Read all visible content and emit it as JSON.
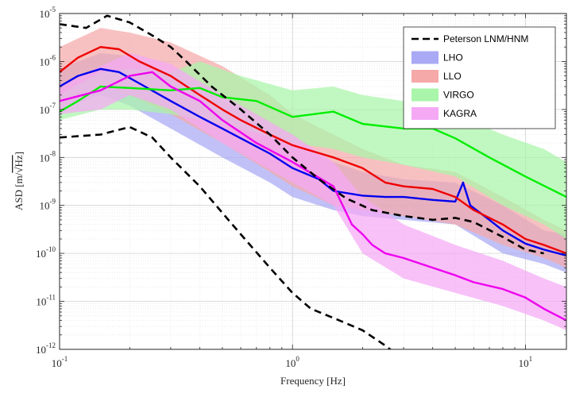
{
  "chart_data": {
    "type": "line",
    "xlabel": "Frequency [Hz]",
    "ylabel_prefix": "ASD [m/",
    "ylabel_root": "√Hz",
    "ylabel_suffix": "]",
    "x_scale": "log",
    "y_scale": "log",
    "xlim": [
      0.1,
      15
    ],
    "ylim": [
      1e-12,
      1e-05
    ],
    "grid": true,
    "legend_position": "top-right",
    "x_ticks": [
      {
        "value": 0.1,
        "base": "10",
        "exp": "-1"
      },
      {
        "value": 1,
        "base": "10",
        "exp": "0"
      },
      {
        "value": 10,
        "base": "10",
        "exp": "1"
      }
    ],
    "y_ticks": [
      {
        "value": 1e-12,
        "base": "10",
        "exp": "-12"
      },
      {
        "value": 1e-11,
        "base": "10",
        "exp": "-11"
      },
      {
        "value": 1e-10,
        "base": "10",
        "exp": "-10"
      },
      {
        "value": 1e-09,
        "base": "10",
        "exp": "-9"
      },
      {
        "value": 1e-08,
        "base": "10",
        "exp": "-8"
      },
      {
        "value": 1e-07,
        "base": "10",
        "exp": "-7"
      },
      {
        "value": 1e-06,
        "base": "10",
        "exp": "-6"
      },
      {
        "value": 1e-05,
        "base": "10",
        "exp": "-5"
      }
    ],
    "legend": [
      {
        "label": "Peterson LNM/HNM",
        "kind": "dashed",
        "color": "#000000"
      },
      {
        "label": "LHO",
        "kind": "patch",
        "color": "#a9a9f5"
      },
      {
        "label": "LLO",
        "kind": "patch",
        "color": "#f5a9a9"
      },
      {
        "label": "VIRGO",
        "kind": "patch",
        "color": "#a9f5a9"
      },
      {
        "label": "KAGRA",
        "kind": "patch",
        "color": "#f5a9f5"
      }
    ],
    "reference_lines": [
      {
        "name": "Peterson HNM",
        "color": "#000000",
        "dashed": true,
        "points": [
          [
            0.1,
            6e-06
          ],
          [
            0.13,
            5e-06
          ],
          [
            0.16,
            9e-06
          ],
          [
            0.2,
            6.5e-06
          ],
          [
            0.25,
            3.5e-06
          ],
          [
            0.3,
            2e-06
          ],
          [
            0.35,
            1e-06
          ],
          [
            0.45,
            3e-07
          ],
          [
            0.6,
            1e-07
          ],
          [
            0.8,
            3e-08
          ],
          [
            1,
            1e-08
          ],
          [
            1.3,
            3.5e-09
          ],
          [
            1.7,
            1.4e-09
          ],
          [
            2.2,
            8e-10
          ],
          [
            3,
            6e-10
          ],
          [
            4,
            5e-10
          ],
          [
            5,
            5.5e-10
          ],
          [
            6,
            4.5e-10
          ],
          [
            8,
            2.2e-10
          ],
          [
            10,
            1.2e-10
          ],
          [
            12,
            1e-10
          ]
        ]
      },
      {
        "name": "Peterson LNM",
        "color": "#000000",
        "dashed": true,
        "points": [
          [
            0.1,
            2.6e-08
          ],
          [
            0.15,
            3e-08
          ],
          [
            0.2,
            4.3e-08
          ],
          [
            0.25,
            2.6e-08
          ],
          [
            0.3,
            1e-08
          ],
          [
            0.4,
            2.5e-09
          ],
          [
            0.5,
            7e-10
          ],
          [
            0.6,
            2.5e-10
          ],
          [
            0.8,
            5e-11
          ],
          [
            1,
            1.5e-11
          ],
          [
            1.2,
            7e-12
          ],
          [
            1.5,
            4.5e-12
          ],
          [
            2,
            2.5e-12
          ],
          [
            2.5,
            1.2e-12
          ],
          [
            2.7,
            9e-13
          ]
        ]
      }
    ],
    "series": [
      {
        "name": "LHO",
        "color": "#0000ee",
        "band_color": "#a9a9f5",
        "points": [
          [
            0.1,
            3e-07
          ],
          [
            0.12,
            5e-07
          ],
          [
            0.15,
            7e-07
          ],
          [
            0.18,
            6e-07
          ],
          [
            0.22,
            3.5e-07
          ],
          [
            0.3,
            1.5e-07
          ],
          [
            0.4,
            7e-08
          ],
          [
            0.5,
            4e-08
          ],
          [
            0.6,
            2.5e-08
          ],
          [
            0.8,
            1.2e-08
          ],
          [
            1,
            6e-09
          ],
          [
            1.3,
            3.5e-09
          ],
          [
            1.5,
            2e-09
          ],
          [
            2,
            1.6e-09
          ],
          [
            2.5,
            1.5e-09
          ],
          [
            3,
            1.5e-09
          ],
          [
            4,
            1.3e-09
          ],
          [
            5,
            1.2e-09
          ],
          [
            5.4,
            3e-09
          ],
          [
            5.8,
            1e-09
          ],
          [
            7,
            5e-10
          ],
          [
            8,
            3e-10
          ],
          [
            10,
            1.6e-10
          ],
          [
            12,
            1.2e-10
          ],
          [
            15,
            9e-11
          ]
        ],
        "upper": [
          [
            0.1,
            7e-07
          ],
          [
            0.15,
            1.5e-06
          ],
          [
            0.2,
            1.3e-06
          ],
          [
            0.3,
            5e-07
          ],
          [
            0.5,
            1.5e-07
          ],
          [
            0.8,
            4e-08
          ],
          [
            1,
            2e-08
          ],
          [
            1.5,
            8e-09
          ],
          [
            2,
            5e-09
          ],
          [
            3,
            3.5e-09
          ],
          [
            5,
            3e-09
          ],
          [
            8,
            1e-09
          ],
          [
            12,
            3e-10
          ],
          [
            15,
            2.5e-10
          ]
        ],
        "lower": [
          [
            0.1,
            1e-07
          ],
          [
            0.15,
            2e-07
          ],
          [
            0.2,
            1.2e-07
          ],
          [
            0.3,
            4e-08
          ],
          [
            0.5,
            1e-08
          ],
          [
            0.8,
            3e-09
          ],
          [
            1,
            1.5e-09
          ],
          [
            1.5,
            8e-10
          ],
          [
            2,
            6e-10
          ],
          [
            3,
            5e-10
          ],
          [
            5,
            4e-10
          ],
          [
            8,
            1e-10
          ],
          [
            12,
            6e-11
          ],
          [
            15,
            4e-11
          ]
        ]
      },
      {
        "name": "LLO",
        "color": "#ee0000",
        "band_color": "#f5a9a9",
        "points": [
          [
            0.1,
            6e-07
          ],
          [
            0.12,
            1.2e-06
          ],
          [
            0.15,
            2e-06
          ],
          [
            0.18,
            1.8e-06
          ],
          [
            0.22,
            1e-06
          ],
          [
            0.3,
            5e-07
          ],
          [
            0.4,
            2e-07
          ],
          [
            0.5,
            1e-07
          ],
          [
            0.6,
            6e-08
          ],
          [
            0.8,
            3e-08
          ],
          [
            1,
            1.8e-08
          ],
          [
            1.5,
            1e-08
          ],
          [
            2,
            6e-09
          ],
          [
            2.5,
            3e-09
          ],
          [
            3,
            2.5e-09
          ],
          [
            4,
            2.2e-09
          ],
          [
            5,
            1.5e-09
          ],
          [
            6,
            8e-10
          ],
          [
            8,
            4e-10
          ],
          [
            10,
            2e-10
          ],
          [
            12,
            1.5e-10
          ],
          [
            15,
            1e-10
          ]
        ],
        "upper": [
          [
            0.1,
            2e-06
          ],
          [
            0.15,
            5e-06
          ],
          [
            0.2,
            4e-06
          ],
          [
            0.3,
            2.5e-06
          ],
          [
            0.5,
            8e-07
          ],
          [
            0.8,
            2e-07
          ],
          [
            1,
            8e-08
          ],
          [
            1.5,
            3e-08
          ],
          [
            2,
            1.5e-08
          ],
          [
            3,
            7e-09
          ],
          [
            5,
            5e-09
          ],
          [
            8,
            1.5e-09
          ],
          [
            12,
            5e-10
          ],
          [
            15,
            3e-10
          ]
        ],
        "lower": [
          [
            0.1,
            1e-07
          ],
          [
            0.15,
            3e-07
          ],
          [
            0.2,
            2e-07
          ],
          [
            0.3,
            8e-08
          ],
          [
            0.5,
            2e-08
          ],
          [
            0.8,
            5e-09
          ],
          [
            1,
            2.5e-09
          ],
          [
            1.5,
            1e-09
          ],
          [
            2,
            8e-10
          ],
          [
            3,
            6e-10
          ],
          [
            5,
            4e-10
          ],
          [
            8,
            1.5e-10
          ],
          [
            12,
            8e-11
          ],
          [
            15,
            5e-11
          ]
        ]
      },
      {
        "name": "VIRGO",
        "color": "#00ee00",
        "band_color": "#a9f5a9",
        "points": [
          [
            0.1,
            9e-08
          ],
          [
            0.12,
            1.5e-07
          ],
          [
            0.15,
            3e-07
          ],
          [
            0.2,
            2.8e-07
          ],
          [
            0.3,
            2.5e-07
          ],
          [
            0.4,
            2.8e-07
          ],
          [
            0.5,
            1.8e-07
          ],
          [
            0.7,
            1.5e-07
          ],
          [
            1,
            7e-08
          ],
          [
            1.5,
            9e-08
          ],
          [
            2,
            5e-08
          ],
          [
            3,
            4e-08
          ],
          [
            4,
            4e-08
          ],
          [
            5,
            2.5e-08
          ],
          [
            7,
            1e-08
          ],
          [
            10,
            4e-09
          ],
          [
            15,
            1.5e-09
          ]
        ],
        "upper": [
          [
            0.1,
            2e-07
          ],
          [
            0.15,
            6e-07
          ],
          [
            0.2,
            7e-07
          ],
          [
            0.3,
            6e-07
          ],
          [
            0.4,
            1e-06
          ],
          [
            0.6,
            5e-07
          ],
          [
            1,
            2.5e-07
          ],
          [
            1.5,
            3e-07
          ],
          [
            2,
            2e-07
          ],
          [
            3,
            1.5e-07
          ],
          [
            5,
            8e-08
          ],
          [
            8,
            3e-08
          ],
          [
            12,
            1.5e-08
          ],
          [
            15,
            8e-09
          ]
        ],
        "lower": [
          [
            0.1,
            6e-08
          ],
          [
            0.15,
            1e-07
          ],
          [
            0.2,
            1e-07
          ],
          [
            0.3,
            8e-08
          ],
          [
            0.5,
            5e-08
          ],
          [
            1,
            2e-08
          ],
          [
            1.5,
            1.5e-08
          ],
          [
            2,
            1e-08
          ],
          [
            3,
            7e-09
          ],
          [
            5,
            4e-09
          ],
          [
            8,
            1e-09
          ],
          [
            12,
            4e-10
          ],
          [
            15,
            2e-10
          ]
        ]
      },
      {
        "name": "KAGRA",
        "color": "#ee00ee",
        "band_color": "#f5a9f5",
        "points": [
          [
            0.1,
            1.5e-07
          ],
          [
            0.15,
            2.5e-07
          ],
          [
            0.2,
            5e-07
          ],
          [
            0.25,
            6e-07
          ],
          [
            0.3,
            3e-07
          ],
          [
            0.4,
            1.5e-07
          ],
          [
            0.5,
            6e-08
          ],
          [
            0.7,
            2e-08
          ],
          [
            1,
            8e-09
          ],
          [
            1.5,
            2.5e-09
          ],
          [
            1.8,
            4e-10
          ],
          [
            2,
            2.5e-10
          ],
          [
            2.2,
            1.5e-10
          ],
          [
            2.5,
            1e-10
          ],
          [
            3,
            8e-11
          ],
          [
            4,
            5e-11
          ],
          [
            5,
            3.5e-11
          ],
          [
            6,
            2.5e-11
          ],
          [
            8,
            1.8e-11
          ],
          [
            10,
            1.2e-11
          ],
          [
            12,
            7e-12
          ],
          [
            15,
            4e-12
          ]
        ],
        "upper": [
          [
            0.1,
            3e-07
          ],
          [
            0.15,
            8e-07
          ],
          [
            0.2,
            1.5e-06
          ],
          [
            0.3,
            9e-07
          ],
          [
            0.5,
            2e-07
          ],
          [
            1,
            3e-08
          ],
          [
            1.5,
            8e-09
          ],
          [
            2,
            1.5e-09
          ],
          [
            3,
            4e-10
          ],
          [
            5,
            1.5e-10
          ],
          [
            8,
            7e-11
          ],
          [
            12,
            3e-11
          ],
          [
            15,
            2e-11
          ]
        ],
        "lower": [
          [
            0.1,
            8e-08
          ],
          [
            0.15,
            1e-07
          ],
          [
            0.2,
            2e-07
          ],
          [
            0.3,
            1e-07
          ],
          [
            0.5,
            2e-08
          ],
          [
            1,
            3e-09
          ],
          [
            1.5,
            1e-09
          ],
          [
            2,
            1e-10
          ],
          [
            3,
            3e-11
          ],
          [
            5,
            1.5e-11
          ],
          [
            8,
            8e-12
          ],
          [
            12,
            4e-12
          ],
          [
            15,
            2.5e-12
          ]
        ]
      }
    ]
  }
}
